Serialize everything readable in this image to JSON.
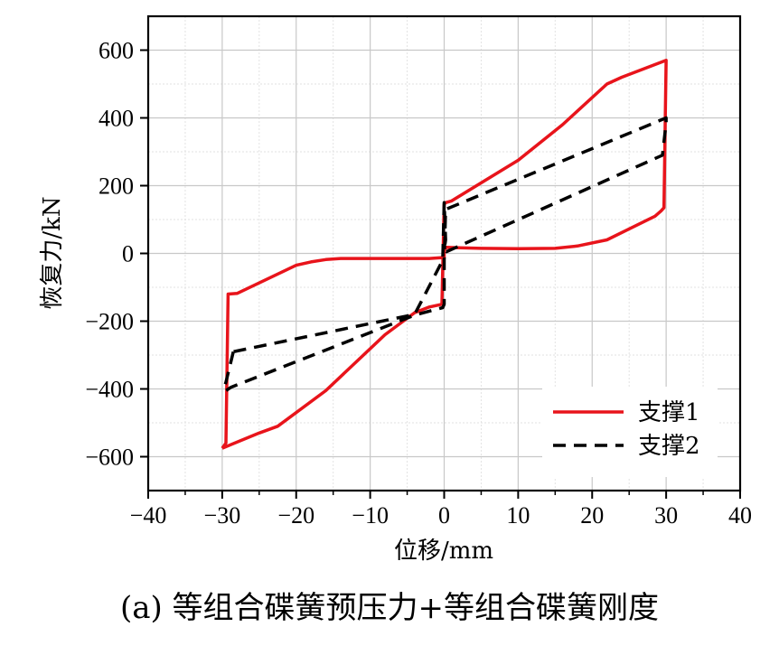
{
  "caption": "(a)  等组合碟簧预压力+等组合碟簧刚度",
  "chart_data": {
    "type": "line",
    "xlabel": "位移/mm",
    "ylabel": "恢复力/kN",
    "xlim": [
      -40,
      40
    ],
    "ylim": [
      -700,
      700
    ],
    "xticks": [
      -40,
      -30,
      -20,
      -10,
      0,
      10,
      20,
      30,
      40
    ],
    "yticks": [
      -600,
      -400,
      -200,
      0,
      200,
      400,
      600
    ],
    "xtick_labels": [
      "−40",
      "−30",
      "−20",
      "−10",
      "0",
      "10",
      "20",
      "30",
      "40"
    ],
    "ytick_labels": [
      "−600",
      "−400",
      "−200",
      "0",
      "200",
      "400",
      "600"
    ],
    "grid": true,
    "legend_position": "bottom-right",
    "series": [
      {
        "name": "支撑1",
        "color": "#e8141b",
        "style": "solid",
        "x": [
          -30,
          -29.5,
          -29.2,
          -28,
          -20,
          -18,
          -16,
          -14,
          -2,
          0,
          0,
          0.3,
          5,
          10,
          15,
          18,
          22,
          28.5,
          29.3,
          29.7,
          30,
          24,
          22,
          16,
          10,
          1,
          0.2,
          0,
          -0.3,
          -2,
          -4,
          -8,
          -16,
          -22.5,
          -25,
          -30
        ],
        "y": [
          -575,
          -560,
          -120,
          -118,
          -35,
          -25,
          -18,
          -15,
          -15,
          -12,
          10,
          18,
          15,
          14,
          15,
          22,
          40,
          110,
          125,
          135,
          570,
          520,
          500,
          380,
          275,
          155,
          150,
          145,
          -150,
          -158,
          -175,
          -240,
          -405,
          -510,
          -530,
          -575
        ]
      },
      {
        "name": "支撑2",
        "color": "#000000",
        "style": "dashed",
        "x": [
          -28.5,
          -29.5,
          -29.8,
          -29.5,
          -28.8,
          -4,
          -0.2,
          0,
          0,
          0.2,
          30,
          30,
          29.5,
          0.3,
          0,
          0.2,
          0,
          -0.2,
          -4,
          -28.5
        ],
        "y": [
          -290,
          -380,
          -400,
          -405,
          -395,
          -182,
          -160,
          -150,
          -20,
          130,
          400,
          385,
          290,
          5,
          10,
          40,
          150,
          -20,
          -180,
          -290
        ]
      }
    ]
  }
}
